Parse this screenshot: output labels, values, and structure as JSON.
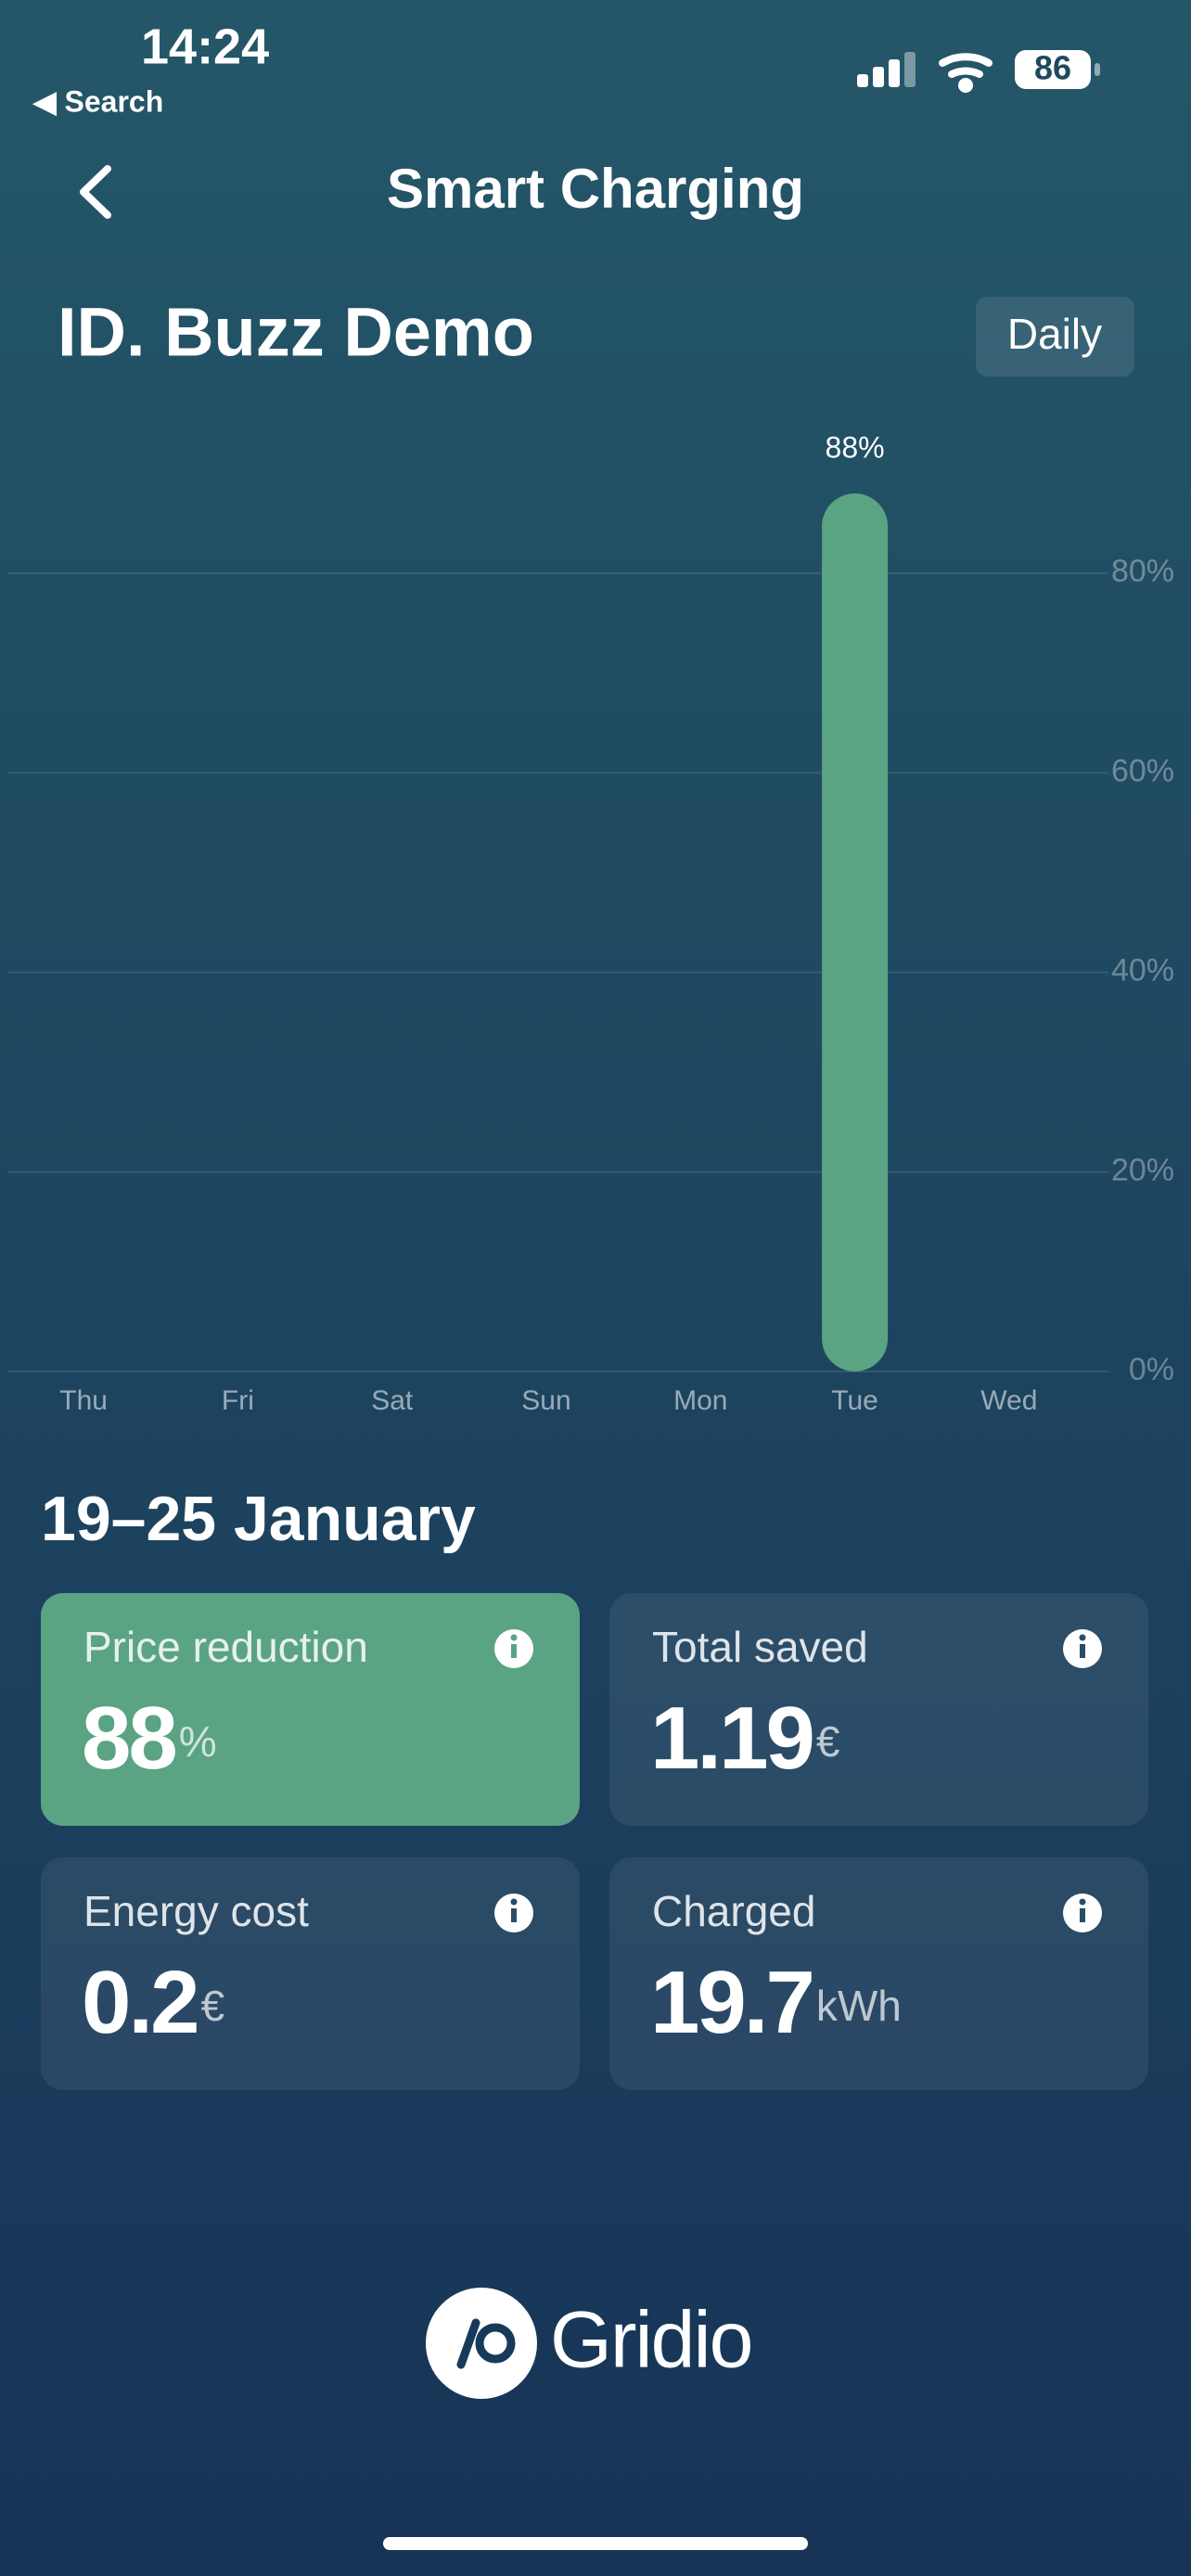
{
  "status_bar": {
    "time": "14:24",
    "back_link": "◀ Search",
    "battery": "86"
  },
  "header": {
    "title": "Smart Charging"
  },
  "vehicle": {
    "name": "ID. Buzz Demo",
    "period_button": "Daily"
  },
  "chart_data": {
    "type": "bar",
    "categories": [
      "Thu",
      "Fri",
      "Sat",
      "Sun",
      "Mon",
      "Tue",
      "Wed"
    ],
    "values": [
      null,
      null,
      null,
      null,
      null,
      88,
      null
    ],
    "value_labels": [
      null,
      null,
      null,
      null,
      null,
      "88%",
      null
    ],
    "color": "#5aa383",
    "ylim": [
      0,
      100
    ],
    "yticks": [
      {
        "value": 0,
        "label": "0%"
      },
      {
        "value": 20,
        "label": "20%"
      },
      {
        "value": 40,
        "label": "40%"
      },
      {
        "value": 60,
        "label": "60%"
      },
      {
        "value": 80,
        "label": "80%"
      }
    ],
    "grid": true
  },
  "summary": {
    "period": "19–25 January",
    "cards": [
      {
        "label": "Price reduction",
        "value": "88",
        "unit": "%"
      },
      {
        "label": "Total saved",
        "value": "1.19",
        "unit": "€"
      },
      {
        "label": "Energy cost",
        "value": "0.2",
        "unit": "€"
      },
      {
        "label": "Charged",
        "value": "19.7",
        "unit": "kWh"
      }
    ]
  },
  "footer": {
    "logo": "Gridio"
  }
}
